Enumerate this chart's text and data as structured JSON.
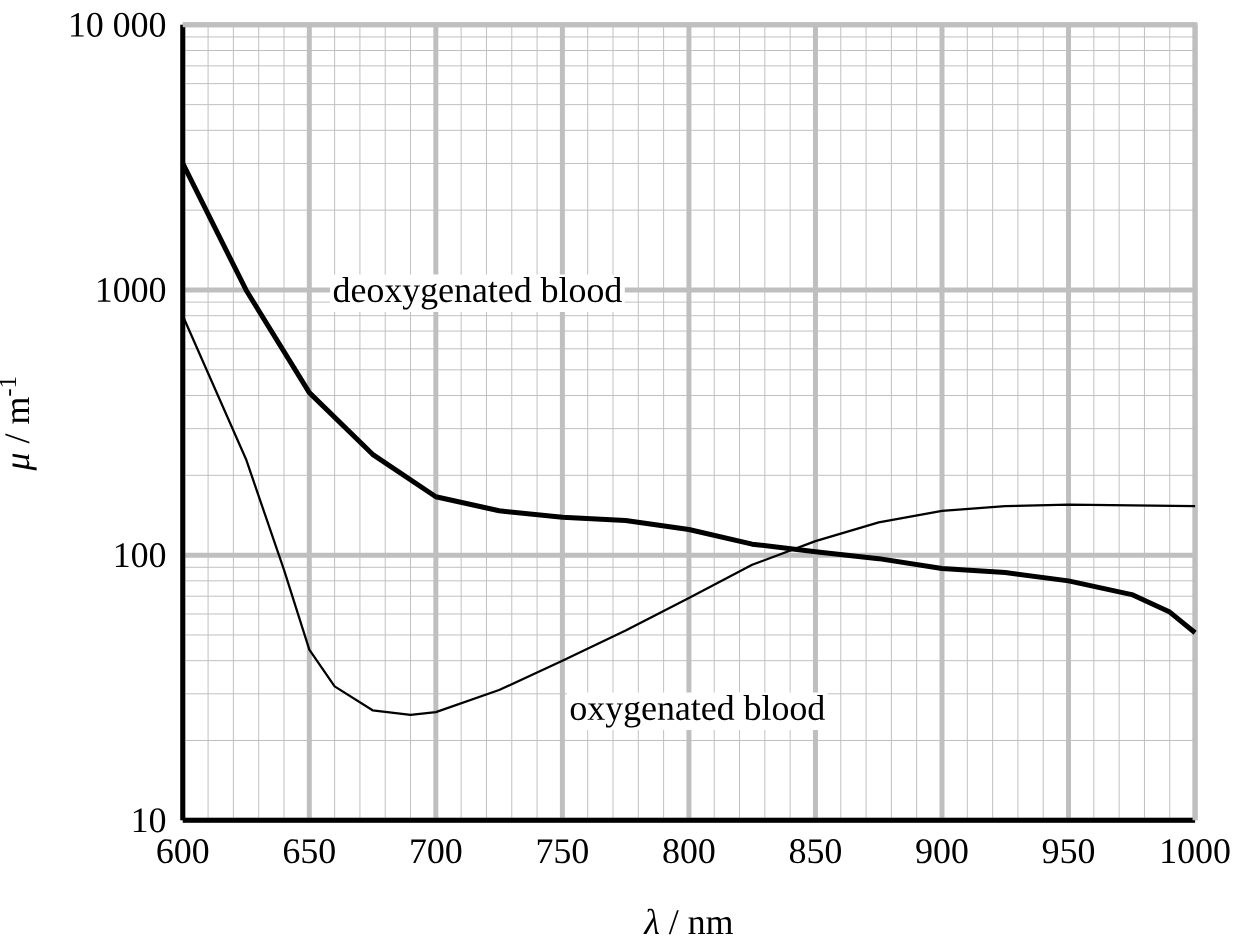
{
  "chart_data": {
    "type": "line",
    "xlabel": "*λ* / nm",
    "ylabel": "*μ* / m$^{-1}$",
    "log": "y",
    "grid": true,
    "marker": "none",
    "line_style": "solid",
    "xlim": [
      600,
      1000
    ],
    "xticks": [
      600,
      650,
      700,
      750,
      800,
      850,
      900,
      950,
      1000
    ],
    "ylim": [
      10,
      10000
    ],
    "yticks": [
      10,
      100,
      1000,
      {
        "value": 10000,
        "label": "10 000"
      }
    ],
    "series": [
      {
        "name": "deoxygenated blood",
        "color": "#000000",
        "x": [
          600,
          625,
          650,
          675,
          700,
          725,
          750,
          775,
          800,
          825,
          850,
          875,
          900,
          925,
          950,
          975,
          990,
          1000
        ],
        "values": [
          3000,
          1000,
          410,
          240,
          166,
          147,
          139,
          135,
          125,
          110,
          103,
          97,
          89,
          86,
          80,
          71,
          61,
          51
        ]
      },
      {
        "name": "oxygenated blood",
        "color": "#000000",
        "x": [
          600,
          625,
          640,
          650,
          660,
          675,
          690,
          700,
          725,
          750,
          775,
          800,
          825,
          850,
          875,
          900,
          925,
          950,
          1000
        ],
        "values": [
          800,
          230,
          88,
          44,
          32,
          26,
          25,
          25.6,
          31,
          40,
          52,
          69,
          92,
          113,
          133,
          147,
          153,
          155,
          153
        ]
      }
    ]
  }
}
